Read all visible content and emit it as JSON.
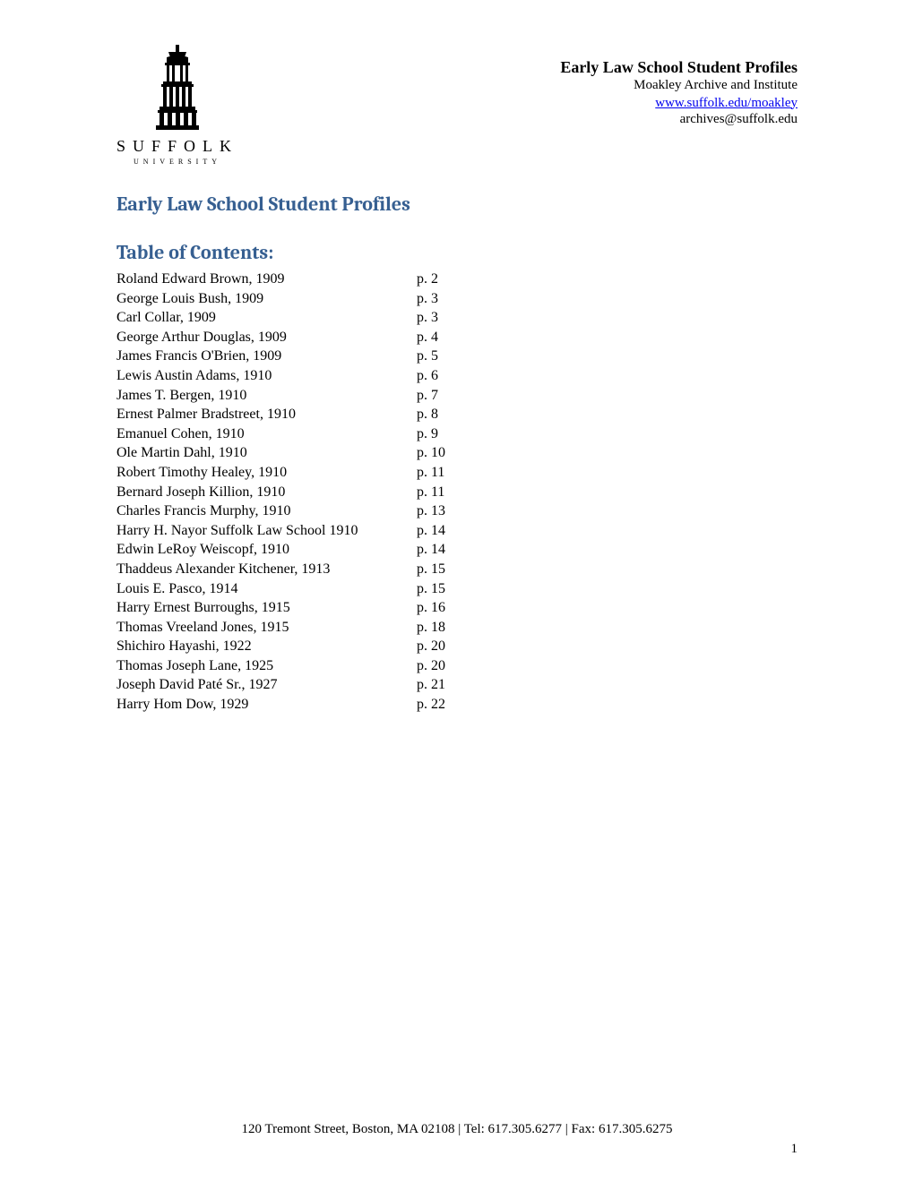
{
  "header": {
    "title": "Early Law School Student Profiles",
    "institute": "Moakley Archive and Institute",
    "website": "www.suffolk.edu/moakley",
    "email": "archives@suffolk.edu",
    "university_name": "SUFFOLK",
    "university_subtext": "UNIVERSITY"
  },
  "main_heading": "Early Law School Student Profiles",
  "toc_heading": "Table of Contents:",
  "toc_entries": [
    {
      "name": "Roland Edward Brown, 1909",
      "page": "p. 2"
    },
    {
      "name": "George Louis Bush, 1909",
      "page": "p. 3"
    },
    {
      "name": "Carl Collar, 1909",
      "page": "p. 3"
    },
    {
      "name": "George Arthur Douglas, 1909",
      "page": "p. 4"
    },
    {
      "name": "James Francis O'Brien, 1909",
      "page": "p. 5"
    },
    {
      "name": "Lewis Austin Adams, 1910",
      "page": "p. 6"
    },
    {
      "name": "James T. Bergen, 1910",
      "page": "p. 7"
    },
    {
      "name": "Ernest Palmer Bradstreet, 1910",
      "page": "p. 8"
    },
    {
      "name": "Emanuel Cohen, 1910",
      "page": "p. 9"
    },
    {
      "name": "Ole Martin Dahl, 1910",
      "page": "p. 10"
    },
    {
      "name": "Robert Timothy Healey, 1910",
      "page": "p. 11"
    },
    {
      "name": "Bernard Joseph Killion, 1910",
      "page": "p. 11"
    },
    {
      "name": "Charles Francis Murphy, 1910",
      "page": "p. 13"
    },
    {
      "name": "Harry H. Nayor Suffolk Law School 1910",
      "page": "p. 14"
    },
    {
      "name": "Edwin LeRoy Weiscopf, 1910",
      "page": "p. 14"
    },
    {
      "name": "Thaddeus Alexander Kitchener, 1913",
      "page": "p. 15"
    },
    {
      "name": "Louis E. Pasco, 1914",
      "page": "p. 15"
    },
    {
      "name": "Harry Ernest Burroughs, 1915",
      "page": "p. 16"
    },
    {
      "name": "Thomas Vreeland Jones, 1915",
      "page": "p. 18"
    },
    {
      "name": "Shichiro Hayashi, 1922",
      "page": "p. 20"
    },
    {
      "name": "Thomas Joseph Lane, 1925",
      "page": "p. 20"
    },
    {
      "name": "Joseph David Paté Sr., 1927",
      "page": "p. 21"
    },
    {
      "name": "Harry Hom Dow, 1929",
      "page": "p. 22"
    }
  ],
  "footer": "120 Tremont Street, Boston, MA 02108 | Tel: 617.305.6277 | Fax: 617.305.6275",
  "page_number": "1",
  "colors": {
    "heading_color": "#365f91",
    "text_color": "#000000",
    "link_color": "#0000ee",
    "background": "#ffffff"
  },
  "typography": {
    "body_font": "Times New Roman",
    "heading_font": "Cambria",
    "body_size_pt": 12,
    "heading_size_pt": 17
  }
}
